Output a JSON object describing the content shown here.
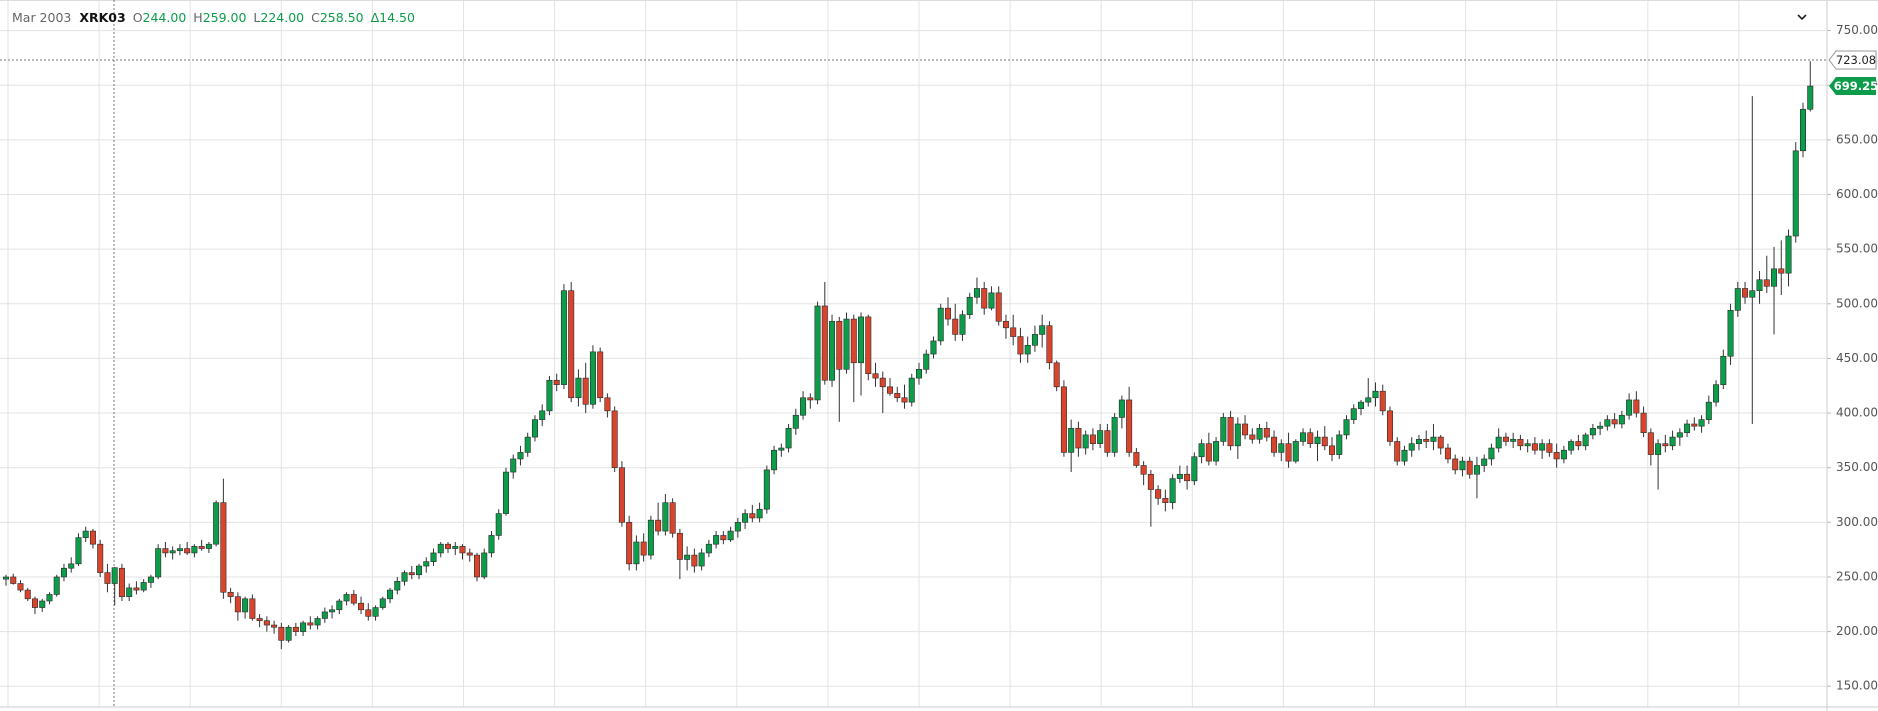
{
  "chart_data": {
    "type": "candlestick",
    "legend": {
      "date": "Mar 2003",
      "symbol": "XRK03",
      "fields": [
        {
          "key": "O",
          "value": "244.00"
        },
        {
          "key": "H",
          "value": "259.00"
        },
        {
          "key": "L",
          "value": "224.00"
        },
        {
          "key": "C",
          "value": "258.50"
        },
        {
          "key": "Δ",
          "value": "14.50"
        }
      ]
    },
    "up_color": "#0c9c4a",
    "down_color": "#d9452c",
    "ylim": [
      131,
      778
    ],
    "yticks": [
      {
        "value": 150,
        "label": "150.00"
      },
      {
        "value": 200,
        "label": "200.00"
      },
      {
        "value": 250,
        "label": "250.00"
      },
      {
        "value": 300,
        "label": "300.00"
      },
      {
        "value": 350,
        "label": "350.00"
      },
      {
        "value": 400,
        "label": "400.00"
      },
      {
        "value": 450,
        "label": "450.00"
      },
      {
        "value": 500,
        "label": "500.00"
      },
      {
        "value": 550,
        "label": "550.00"
      },
      {
        "value": 600,
        "label": "600.00"
      },
      {
        "value": 650,
        "label": "650.00"
      },
      {
        "value": 700,
        "label": "700.00"
      },
      {
        "value": 750,
        "label": "750.00"
      }
    ],
    "grid": true,
    "crosshair_price": 723.08,
    "last_price": 699.25,
    "ohlc": [
      [
        248,
        252,
        242,
        250
      ],
      [
        250,
        253,
        243,
        244
      ],
      [
        244,
        247,
        236,
        238
      ],
      [
        238,
        240,
        228,
        230
      ],
      [
        230,
        232,
        216,
        222
      ],
      [
        222,
        230,
        218,
        228
      ],
      [
        228,
        236,
        225,
        234
      ],
      [
        234,
        252,
        232,
        250
      ],
      [
        250,
        262,
        246,
        258
      ],
      [
        258,
        268,
        254,
        262
      ],
      [
        262,
        290,
        260,
        286
      ],
      [
        286,
        296,
        282,
        292
      ],
      [
        292,
        294,
        276,
        280
      ],
      [
        280,
        284,
        250,
        254
      ],
      [
        254,
        262,
        236,
        244
      ],
      [
        244,
        259,
        224,
        258.5
      ],
      [
        258,
        262,
        228,
        232
      ],
      [
        232,
        244,
        228,
        240
      ],
      [
        240,
        246,
        234,
        238
      ],
      [
        238,
        248,
        236,
        245
      ],
      [
        245,
        252,
        240,
        250
      ],
      [
        250,
        280,
        248,
        276
      ],
      [
        276,
        282,
        268,
        272
      ],
      [
        272,
        278,
        266,
        274
      ],
      [
        274,
        280,
        270,
        276
      ],
      [
        276,
        282,
        270,
        272
      ],
      [
        272,
        280,
        268,
        278
      ],
      [
        278,
        284,
        274,
        276
      ],
      [
        276,
        282,
        272,
        280
      ],
      [
        280,
        320,
        278,
        318
      ],
      [
        318,
        340,
        230,
        236
      ],
      [
        236,
        240,
        226,
        232
      ],
      [
        232,
        236,
        210,
        218
      ],
      [
        218,
        232,
        212,
        230
      ],
      [
        230,
        234,
        210,
        212
      ],
      [
        212,
        216,
        204,
        210
      ],
      [
        210,
        214,
        200,
        206
      ],
      [
        206,
        210,
        198,
        204
      ],
      [
        204,
        208,
        184,
        192
      ],
      [
        192,
        206,
        190,
        204
      ],
      [
        204,
        208,
        196,
        200
      ],
      [
        200,
        210,
        196,
        208
      ],
      [
        208,
        214,
        202,
        206
      ],
      [
        206,
        214,
        202,
        212
      ],
      [
        212,
        222,
        208,
        218
      ],
      [
        218,
        224,
        212,
        220
      ],
      [
        220,
        230,
        216,
        228
      ],
      [
        228,
        236,
        224,
        234
      ],
      [
        234,
        238,
        224,
        226
      ],
      [
        226,
        232,
        216,
        220
      ],
      [
        220,
        226,
        210,
        214
      ],
      [
        214,
        224,
        210,
        222
      ],
      [
        222,
        232,
        220,
        230
      ],
      [
        230,
        240,
        226,
        238
      ],
      [
        238,
        250,
        234,
        246
      ],
      [
        246,
        256,
        242,
        254
      ],
      [
        254,
        260,
        248,
        252
      ],
      [
        252,
        262,
        248,
        260
      ],
      [
        260,
        268,
        254,
        264
      ],
      [
        264,
        276,
        260,
        272
      ],
      [
        272,
        282,
        268,
        280
      ],
      [
        280,
        282,
        272,
        276
      ],
      [
        276,
        282,
        270,
        278
      ],
      [
        278,
        280,
        266,
        272
      ],
      [
        272,
        276,
        264,
        270
      ],
      [
        270,
        272,
        246,
        250
      ],
      [
        250,
        276,
        248,
        272
      ],
      [
        272,
        292,
        268,
        288
      ],
      [
        288,
        312,
        284,
        308
      ],
      [
        308,
        350,
        306,
        346
      ],
      [
        346,
        362,
        340,
        358
      ],
      [
        358,
        370,
        352,
        364
      ],
      [
        364,
        382,
        360,
        378
      ],
      [
        378,
        398,
        374,
        394
      ],
      [
        394,
        408,
        388,
        402
      ],
      [
        402,
        434,
        398,
        430
      ],
      [
        430,
        436,
        420,
        426
      ],
      [
        426,
        518,
        422,
        512
      ],
      [
        512,
        520,
        410,
        414
      ],
      [
        414,
        440,
        406,
        432
      ],
      [
        432,
        446,
        400,
        408
      ],
      [
        408,
        462,
        404,
        456
      ],
      [
        456,
        460,
        410,
        414
      ],
      [
        414,
        418,
        396,
        402
      ],
      [
        402,
        406,
        346,
        350
      ],
      [
        350,
        356,
        296,
        300
      ],
      [
        300,
        306,
        256,
        262
      ],
      [
        262,
        288,
        256,
        282
      ],
      [
        282,
        290,
        264,
        270
      ],
      [
        270,
        306,
        266,
        302
      ],
      [
        302,
        318,
        288,
        292
      ],
      [
        292,
        326,
        288,
        318
      ],
      [
        318,
        322,
        286,
        290
      ],
      [
        290,
        294,
        248,
        266
      ],
      [
        266,
        278,
        256,
        270
      ],
      [
        270,
        276,
        254,
        260
      ],
      [
        260,
        276,
        256,
        272
      ],
      [
        272,
        284,
        268,
        280
      ],
      [
        280,
        292,
        276,
        288
      ],
      [
        288,
        292,
        280,
        284
      ],
      [
        284,
        296,
        282,
        292
      ],
      [
        292,
        304,
        286,
        300
      ],
      [
        300,
        312,
        294,
        308
      ],
      [
        308,
        316,
        300,
        304
      ],
      [
        304,
        318,
        300,
        312
      ],
      [
        312,
        352,
        308,
        348
      ],
      [
        348,
        370,
        344,
        366
      ],
      [
        366,
        372,
        360,
        368
      ],
      [
        368,
        390,
        364,
        386
      ],
      [
        386,
        404,
        380,
        398
      ],
      [
        398,
        420,
        394,
        414
      ],
      [
        414,
        418,
        404,
        412
      ],
      [
        412,
        502,
        408,
        498
      ],
      [
        498,
        520,
        426,
        430
      ],
      [
        430,
        490,
        424,
        484
      ],
      [
        484,
        488,
        392,
        440
      ],
      [
        440,
        492,
        436,
        486
      ],
      [
        486,
        490,
        410,
        446
      ],
      [
        446,
        492,
        416,
        488
      ],
      [
        488,
        490,
        430,
        436
      ],
      [
        436,
        446,
        424,
        432
      ],
      [
        432,
        438,
        400,
        424
      ],
      [
        424,
        432,
        416,
        418
      ],
      [
        418,
        424,
        410,
        414
      ],
      [
        414,
        426,
        404,
        410
      ],
      [
        410,
        436,
        406,
        432
      ],
      [
        432,
        446,
        426,
        440
      ],
      [
        440,
        458,
        436,
        454
      ],
      [
        454,
        470,
        450,
        466
      ],
      [
        466,
        500,
        462,
        496
      ],
      [
        496,
        506,
        480,
        486
      ],
      [
        486,
        500,
        466,
        472
      ],
      [
        472,
        494,
        466,
        490
      ],
      [
        490,
        510,
        486,
        506
      ],
      [
        506,
        524,
        500,
        514
      ],
      [
        514,
        520,
        490,
        496
      ],
      [
        496,
        516,
        494,
        510
      ],
      [
        510,
        516,
        480,
        484
      ],
      [
        484,
        490,
        468,
        478
      ],
      [
        478,
        490,
        462,
        470
      ],
      [
        470,
        478,
        446,
        454
      ],
      [
        454,
        470,
        446,
        462
      ],
      [
        462,
        480,
        456,
        472
      ],
      [
        472,
        490,
        460,
        480
      ],
      [
        480,
        484,
        440,
        446
      ],
      [
        446,
        448,
        420,
        424
      ],
      [
        424,
        430,
        360,
        364
      ],
      [
        364,
        394,
        346,
        386
      ],
      [
        386,
        392,
        360,
        368
      ],
      [
        368,
        384,
        362,
        380
      ],
      [
        380,
        386,
        366,
        372
      ],
      [
        372,
        390,
        368,
        384
      ],
      [
        384,
        390,
        360,
        364
      ],
      [
        364,
        400,
        360,
        396
      ],
      [
        396,
        416,
        386,
        412
      ],
      [
        412,
        424,
        360,
        364
      ],
      [
        364,
        368,
        350,
        352
      ],
      [
        352,
        356,
        334,
        344
      ],
      [
        344,
        348,
        296,
        330
      ],
      [
        330,
        334,
        316,
        322
      ],
      [
        322,
        330,
        310,
        318
      ],
      [
        318,
        344,
        312,
        340
      ],
      [
        340,
        352,
        336,
        344
      ],
      [
        344,
        352,
        330,
        338
      ],
      [
        338,
        364,
        334,
        360
      ],
      [
        360,
        376,
        354,
        372
      ],
      [
        372,
        382,
        352,
        356
      ],
      [
        356,
        378,
        352,
        374
      ],
      [
        374,
        400,
        370,
        396
      ],
      [
        396,
        402,
        366,
        370
      ],
      [
        370,
        396,
        358,
        390
      ],
      [
        390,
        398,
        376,
        380
      ],
      [
        380,
        386,
        372,
        376
      ],
      [
        376,
        390,
        372,
        386
      ],
      [
        386,
        392,
        374,
        378
      ],
      [
        378,
        384,
        360,
        364
      ],
      [
        364,
        376,
        356,
        372
      ],
      [
        372,
        382,
        350,
        356
      ],
      [
        356,
        376,
        354,
        374
      ],
      [
        374,
        386,
        370,
        382
      ],
      [
        382,
        386,
        368,
        372
      ],
      [
        372,
        384,
        356,
        378
      ],
      [
        378,
        388,
        366,
        370
      ],
      [
        370,
        378,
        356,
        362
      ],
      [
        362,
        384,
        358,
        380
      ],
      [
        380,
        398,
        376,
        394
      ],
      [
        394,
        408,
        390,
        404
      ],
      [
        404,
        412,
        398,
        410
      ],
      [
        410,
        432,
        406,
        414
      ],
      [
        414,
        428,
        406,
        420
      ],
      [
        420,
        426,
        398,
        402
      ],
      [
        402,
        406,
        370,
        374
      ],
      [
        374,
        378,
        352,
        356
      ],
      [
        356,
        370,
        352,
        366
      ],
      [
        366,
        378,
        360,
        372
      ],
      [
        372,
        380,
        366,
        376
      ],
      [
        376,
        384,
        368,
        374
      ],
      [
        374,
        390,
        366,
        378
      ],
      [
        378,
        380,
        362,
        368
      ],
      [
        368,
        372,
        354,
        358
      ],
      [
        358,
        362,
        344,
        348
      ],
      [
        348,
        360,
        342,
        356
      ],
      [
        356,
        360,
        340,
        344
      ],
      [
        344,
        360,
        322,
        352
      ],
      [
        352,
        362,
        346,
        358
      ],
      [
        358,
        372,
        352,
        368
      ],
      [
        368,
        386,
        364,
        378
      ],
      [
        378,
        382,
        370,
        374
      ],
      [
        374,
        382,
        368,
        376
      ],
      [
        376,
        380,
        366,
        370
      ],
      [
        370,
        376,
        364,
        372
      ],
      [
        372,
        378,
        362,
        366
      ],
      [
        366,
        376,
        358,
        372
      ],
      [
        372,
        376,
        360,
        364
      ],
      [
        364,
        372,
        350,
        358
      ],
      [
        358,
        370,
        354,
        366
      ],
      [
        366,
        376,
        362,
        374
      ],
      [
        374,
        380,
        366,
        370
      ],
      [
        370,
        382,
        366,
        380
      ],
      [
        380,
        390,
        376,
        386
      ],
      [
        386,
        392,
        380,
        388
      ],
      [
        388,
        398,
        384,
        394
      ],
      [
        394,
        400,
        386,
        390
      ],
      [
        390,
        402,
        386,
        398
      ],
      [
        398,
        418,
        394,
        412
      ],
      [
        412,
        420,
        396,
        400
      ],
      [
        400,
        406,
        378,
        382
      ],
      [
        382,
        386,
        352,
        362
      ],
      [
        362,
        376,
        330,
        372
      ],
      [
        372,
        380,
        364,
        370
      ],
      [
        370,
        384,
        366,
        378
      ],
      [
        378,
        386,
        370,
        382
      ],
      [
        382,
        394,
        378,
        390
      ],
      [
        390,
        396,
        384,
        388
      ],
      [
        388,
        398,
        382,
        394
      ],
      [
        394,
        416,
        390,
        410
      ],
      [
        410,
        430,
        406,
        426
      ],
      [
        426,
        458,
        422,
        452
      ],
      [
        452,
        500,
        444,
        494
      ],
      [
        494,
        520,
        488,
        514
      ],
      [
        514,
        520,
        500,
        506
      ],
      [
        506,
        690,
        390,
        512
      ],
      [
        512,
        530,
        500,
        522
      ],
      [
        522,
        544,
        510,
        516
      ],
      [
        516,
        552,
        472,
        532
      ],
      [
        532,
        558,
        508,
        528
      ],
      [
        528,
        568,
        516,
        562
      ],
      [
        562,
        648,
        556,
        640
      ],
      [
        640,
        684,
        634,
        678
      ],
      [
        678,
        722,
        676,
        699.25
      ]
    ]
  }
}
